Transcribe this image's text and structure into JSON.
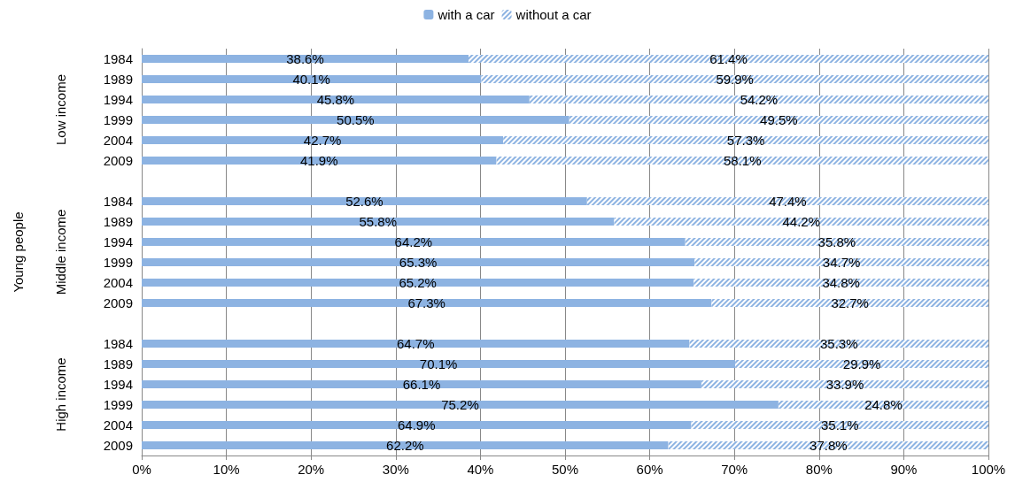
{
  "chart_data": {
    "type": "bar",
    "orientation": "horizontal",
    "stacked": true,
    "annotations": [
      "Low income",
      "Middle income",
      "High income",
      "Young people"
    ],
    "categories": [
      "1984",
      "1989",
      "1994",
      "1999",
      "2004",
      "2009",
      null,
      "1984",
      "1989",
      "1994",
      "1999",
      "2004",
      "2009",
      null,
      "1984",
      "1989",
      "1994",
      "1999",
      "2004",
      "2009"
    ],
    "series": [
      {
        "name": "with a car",
        "color": "#8db3e2",
        "values": [
          38.6,
          40.1,
          45.8,
          50.5,
          42.7,
          41.9,
          null,
          52.6,
          55.8,
          64.2,
          65.3,
          65.2,
          67.3,
          null,
          64.7,
          70.1,
          66.1,
          75.2,
          64.9,
          62.2
        ],
        "value_labels": [
          "38.6%",
          "40.1%",
          "45.8%",
          "50.5%",
          "42.7%",
          "41.9%",
          null,
          "52.6%",
          "55.8%",
          "64.2%",
          "65.3%",
          "65.2%",
          "67.3%",
          null,
          "64.7%",
          "70.1%",
          "66.1%",
          "75.2%",
          "64.9%",
          "62.2%"
        ]
      },
      {
        "name": "without a car",
        "color": "#8db3e2",
        "values": [
          61.4,
          59.9,
          54.2,
          49.5,
          57.3,
          58.1,
          null,
          47.4,
          44.2,
          35.8,
          34.7,
          34.8,
          32.7,
          null,
          35.3,
          29.9,
          33.9,
          24.8,
          35.1,
          37.8
        ],
        "value_labels": [
          "61.4%",
          "59.9%",
          "54.2%",
          "49.5%",
          "57.3%",
          "58.1%",
          null,
          "47.4%",
          "44.2%",
          "35.8%",
          "34.7%",
          "34.8%",
          "32.7%",
          null,
          "35.3%",
          "29.9%",
          "33.9%",
          "24.8%",
          "35.1%",
          "37.8%"
        ]
      }
    ],
    "xlim": [
      0,
      100
    ],
    "xticks": [
      {
        "value": 0,
        "label": "0%"
      },
      {
        "value": 10,
        "label": "10%"
      },
      {
        "value": 20,
        "label": "20%"
      },
      {
        "value": 30,
        "label": "30%"
      },
      {
        "value": 40,
        "label": "40%"
      },
      {
        "value": 50,
        "label": "50%"
      },
      {
        "value": 60,
        "label": "60%"
      },
      {
        "value": 70,
        "label": "70%"
      },
      {
        "value": 80,
        "label": "80%"
      },
      {
        "value": 90,
        "label": "90%"
      },
      {
        "value": 100,
        "label": "100%"
      }
    ],
    "grid": "x",
    "legend": "top"
  }
}
